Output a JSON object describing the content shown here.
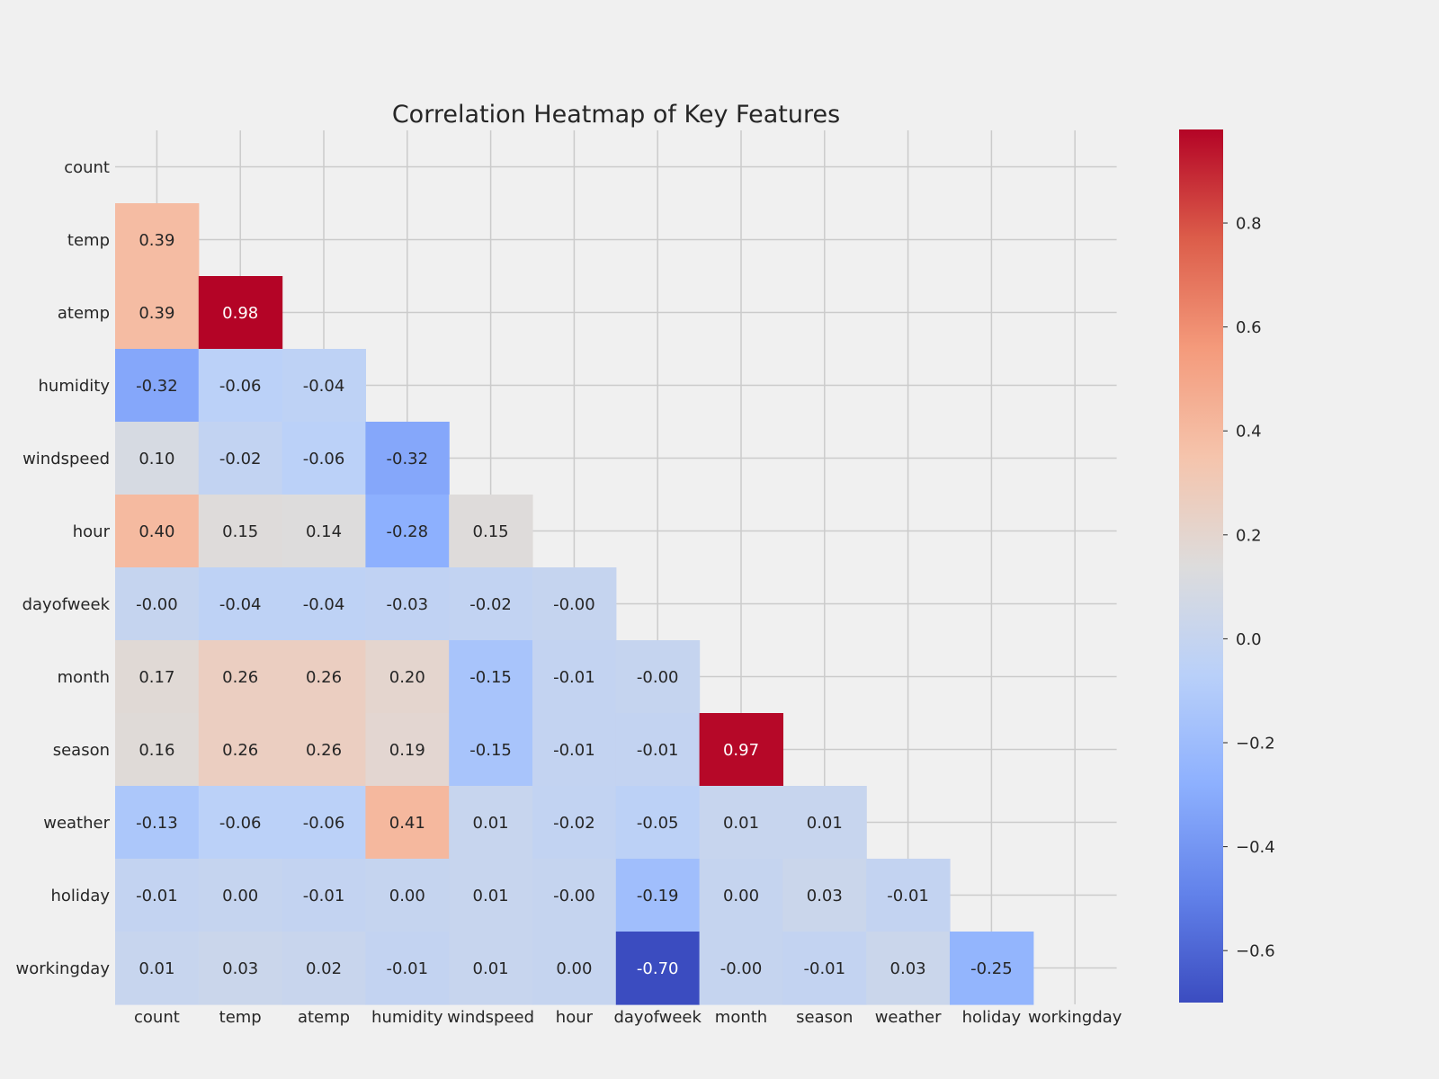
{
  "chart_data": {
    "type": "heatmap",
    "title": "Correlation Heatmap of Key Features",
    "xlabel": "",
    "ylabel": "",
    "mask": "upper-triangle-including-diagonal",
    "grid": true,
    "colormap": "coolwarm",
    "labels": [
      "count",
      "temp",
      "atemp",
      "humidity",
      "windspeed",
      "hour",
      "dayofweek",
      "month",
      "season",
      "weather",
      "holiday",
      "workingday"
    ],
    "rows": [
      {
        "label": "count",
        "values": []
      },
      {
        "label": "temp",
        "values": [
          0.39
        ]
      },
      {
        "label": "atemp",
        "values": [
          0.39,
          0.98
        ]
      },
      {
        "label": "humidity",
        "values": [
          -0.32,
          -0.06,
          -0.04
        ]
      },
      {
        "label": "windspeed",
        "values": [
          0.1,
          -0.02,
          -0.06,
          -0.32
        ]
      },
      {
        "label": "hour",
        "values": [
          0.4,
          0.15,
          0.14,
          -0.28,
          0.15
        ]
      },
      {
        "label": "dayofweek",
        "values": [
          -0.0,
          -0.04,
          -0.04,
          -0.03,
          -0.02,
          -0.0
        ]
      },
      {
        "label": "month",
        "values": [
          0.17,
          0.26,
          0.26,
          0.2,
          -0.15,
          -0.01,
          -0.0
        ]
      },
      {
        "label": "season",
        "values": [
          0.16,
          0.26,
          0.26,
          0.19,
          -0.15,
          -0.01,
          -0.01,
          0.97
        ]
      },
      {
        "label": "weather",
        "values": [
          -0.13,
          -0.06,
          -0.06,
          0.41,
          0.01,
          -0.02,
          -0.05,
          0.01,
          0.01
        ]
      },
      {
        "label": "holiday",
        "values": [
          -0.01,
          0.0,
          -0.01,
          0.0,
          0.01,
          -0.0,
          -0.19,
          0.0,
          0.03,
          -0.01
        ]
      },
      {
        "label": "workingday",
        "values": [
          0.01,
          0.03,
          0.02,
          -0.01,
          0.01,
          0.0,
          -0.7,
          -0.0,
          -0.01,
          0.03,
          -0.25
        ]
      }
    ],
    "cell_labels": [
      [],
      [
        "0.39"
      ],
      [
        "0.39",
        "0.98"
      ],
      [
        "-0.32",
        "-0.06",
        "-0.04"
      ],
      [
        "0.10",
        "-0.02",
        "-0.06",
        "-0.32"
      ],
      [
        "0.40",
        "0.15",
        "0.14",
        "-0.28",
        "0.15"
      ],
      [
        "-0.00",
        "-0.04",
        "-0.04",
        "-0.03",
        "-0.02",
        "-0.00"
      ],
      [
        "0.17",
        "0.26",
        "0.26",
        "0.20",
        "-0.15",
        "-0.01",
        "-0.00"
      ],
      [
        "0.16",
        "0.26",
        "0.26",
        "0.19",
        "-0.15",
        "-0.01",
        "-0.01",
        "0.97"
      ],
      [
        "-0.13",
        "-0.06",
        "-0.06",
        "0.41",
        "0.01",
        "-0.02",
        "-0.05",
        "0.01",
        "0.01"
      ],
      [
        "-0.01",
        "0.00",
        "-0.01",
        "0.00",
        "0.01",
        "-0.00",
        "-0.19",
        "0.00",
        "0.03",
        "-0.01"
      ],
      [
        "0.01",
        "0.03",
        "0.02",
        "-0.01",
        "0.01",
        "0.00",
        "-0.70",
        "-0.00",
        "-0.01",
        "0.03",
        "-0.25"
      ]
    ],
    "colorbar": {
      "vmin": -0.7,
      "vmax": 0.98,
      "ticks": [
        0.8,
        0.6,
        0.4,
        0.2,
        0.0,
        -0.2,
        -0.4,
        -0.6
      ],
      "tick_labels": [
        "0.8",
        "0.6",
        "0.4",
        "0.2",
        "0.0",
        "−0.2",
        "−0.4",
        "−0.6"
      ]
    },
    "colors": {
      "background": "#f0f0f0",
      "grid": "#cbcbcb",
      "text_dark": "#262626",
      "text_light": "#ffffff",
      "stops": [
        "#3b4cc0",
        "#6282ea",
        "#8db0fe",
        "#b9d0f9",
        "#dddcdc",
        "#f5c4ac",
        "#f49a7b",
        "#dc5d4a",
        "#b40426"
      ]
    }
  }
}
